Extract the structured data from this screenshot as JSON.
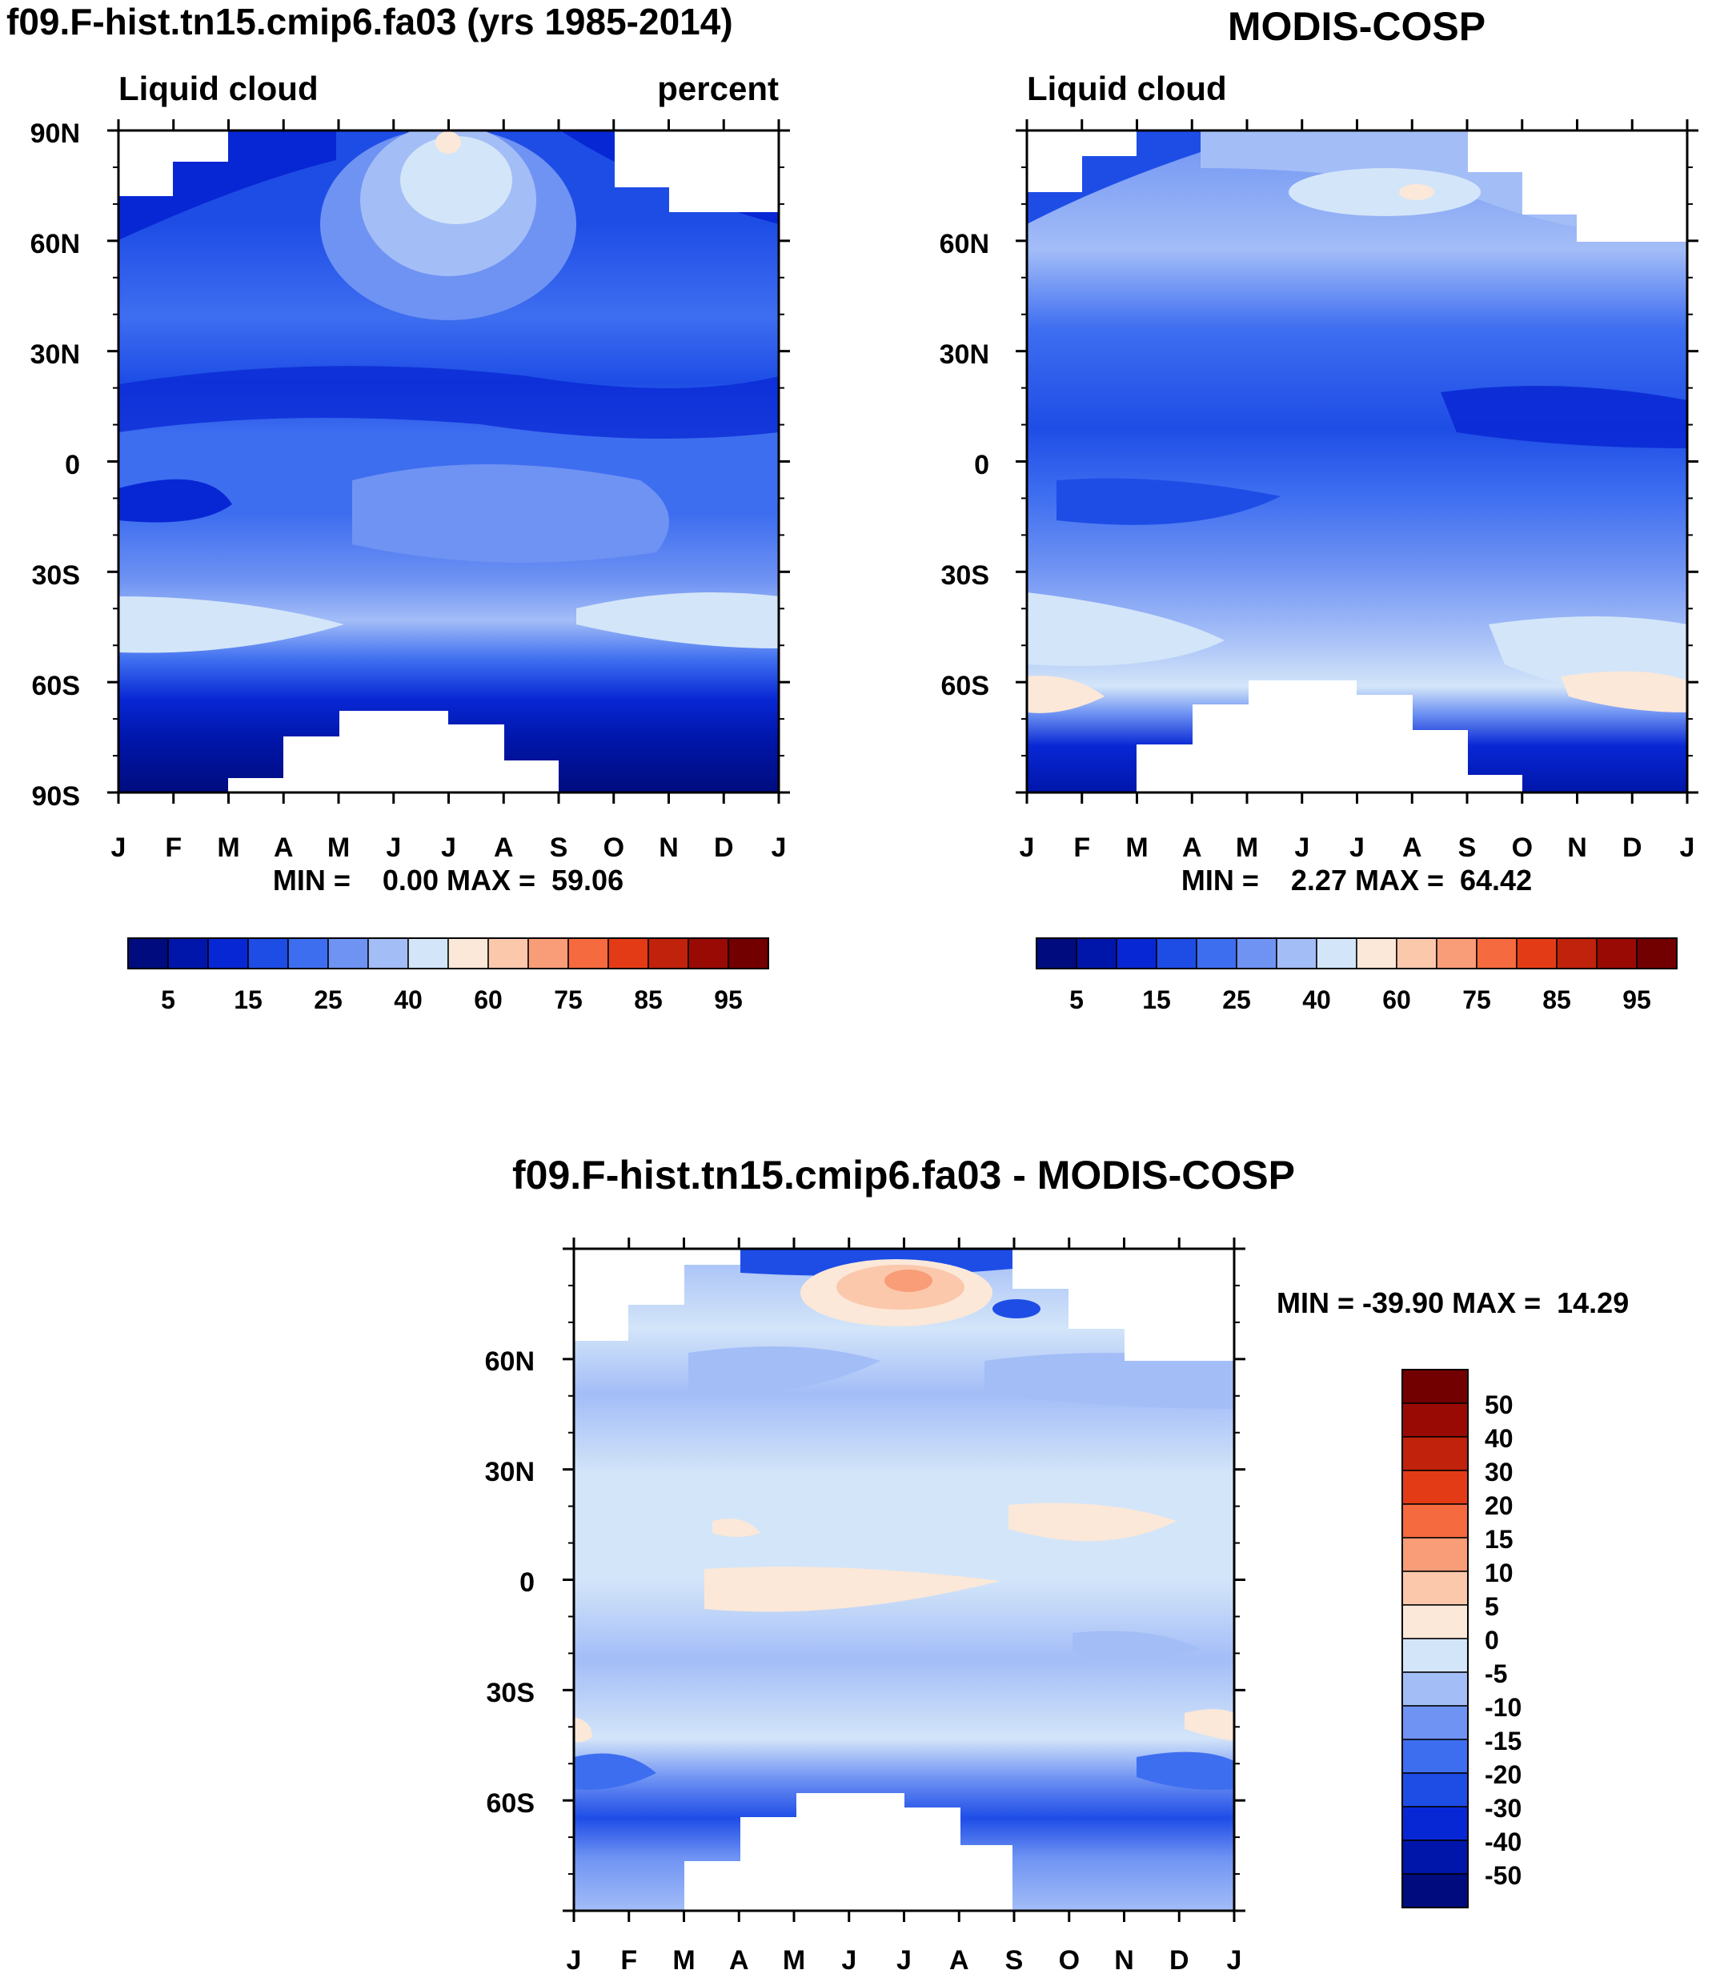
{
  "chart_data": [
    {
      "type": "heatmap",
      "panel": "model",
      "title": "f09.F-hist.tn15.cmip6.fa03 (yrs 1985-2014)",
      "left_string": "Liquid cloud",
      "right_string": "percent",
      "stats_label": "MIN =    0.00 MAX =  59.06",
      "min": 0.0,
      "max": 59.06,
      "x_tick_labels": [
        "J",
        "F",
        "M",
        "A",
        "M",
        "J",
        "J",
        "A",
        "S",
        "O",
        "N",
        "D",
        "J"
      ],
      "y_tick_labels": [
        "90N",
        "60N",
        "30N",
        "0",
        "30S",
        "60S",
        "90S"
      ],
      "y_range": [
        -90,
        90
      ],
      "colorbar_labels": [
        "5",
        "15",
        "25",
        "40",
        "60",
        "75",
        "85",
        "95"
      ]
    },
    {
      "type": "heatmap",
      "panel": "observation",
      "title": "MODIS-COSP",
      "left_string": "Liquid cloud",
      "stats_label": "MIN =    2.27 MAX =  64.42",
      "min": 2.27,
      "max": 64.42,
      "x_tick_labels": [
        "J",
        "F",
        "M",
        "A",
        "M",
        "J",
        "J",
        "A",
        "S",
        "O",
        "N",
        "D",
        "J"
      ],
      "y_tick_labels": [
        "60N",
        "30N",
        "0",
        "30S",
        "60S"
      ],
      "y_range": [
        -90,
        90
      ],
      "colorbar_labels": [
        "5",
        "15",
        "25",
        "40",
        "60",
        "75",
        "85",
        "95"
      ]
    },
    {
      "type": "heatmap",
      "panel": "difference",
      "title": "f09.F-hist.tn15.cmip6.fa03 - MODIS-COSP",
      "stats_label": "MIN = -39.90 MAX =  14.29",
      "min": -39.9,
      "max": 14.29,
      "x_tick_labels": [
        "J",
        "F",
        "M",
        "A",
        "M",
        "J",
        "J",
        "A",
        "S",
        "O",
        "N",
        "D",
        "J"
      ],
      "y_tick_labels": [
        "60N",
        "30N",
        "0",
        "30S",
        "60S"
      ],
      "y_range": [
        -90,
        90
      ],
      "colorbar_labels": [
        "50",
        "40",
        "30",
        "20",
        "15",
        "10",
        "5",
        "0",
        "-5",
        "-10",
        "-15",
        "-20",
        "-30",
        "-40",
        "-50"
      ]
    }
  ],
  "palettes": {
    "abs": [
      "#000c7e",
      "#0016aa",
      "#0827d4",
      "#1e4de6",
      "#3e6ef0",
      "#6f93f3",
      "#a3bdf7",
      "#d3e5f9",
      "#fbe8d8",
      "#fbc8ac",
      "#f89d78",
      "#f56a3f",
      "#e43b17",
      "#c0220c",
      "#9a0a04",
      "#730000"
    ],
    "diff": [
      "#000c7e",
      "#0016aa",
      "#0827d4",
      "#1e4de6",
      "#3e6ef0",
      "#6f93f3",
      "#a3bdf7",
      "#d3e5f9",
      "#fbe8d8",
      "#fbc8ac",
      "#f89d78",
      "#f56a3f",
      "#e43b17",
      "#c0220c",
      "#9a0a04",
      "#730000"
    ]
  }
}
